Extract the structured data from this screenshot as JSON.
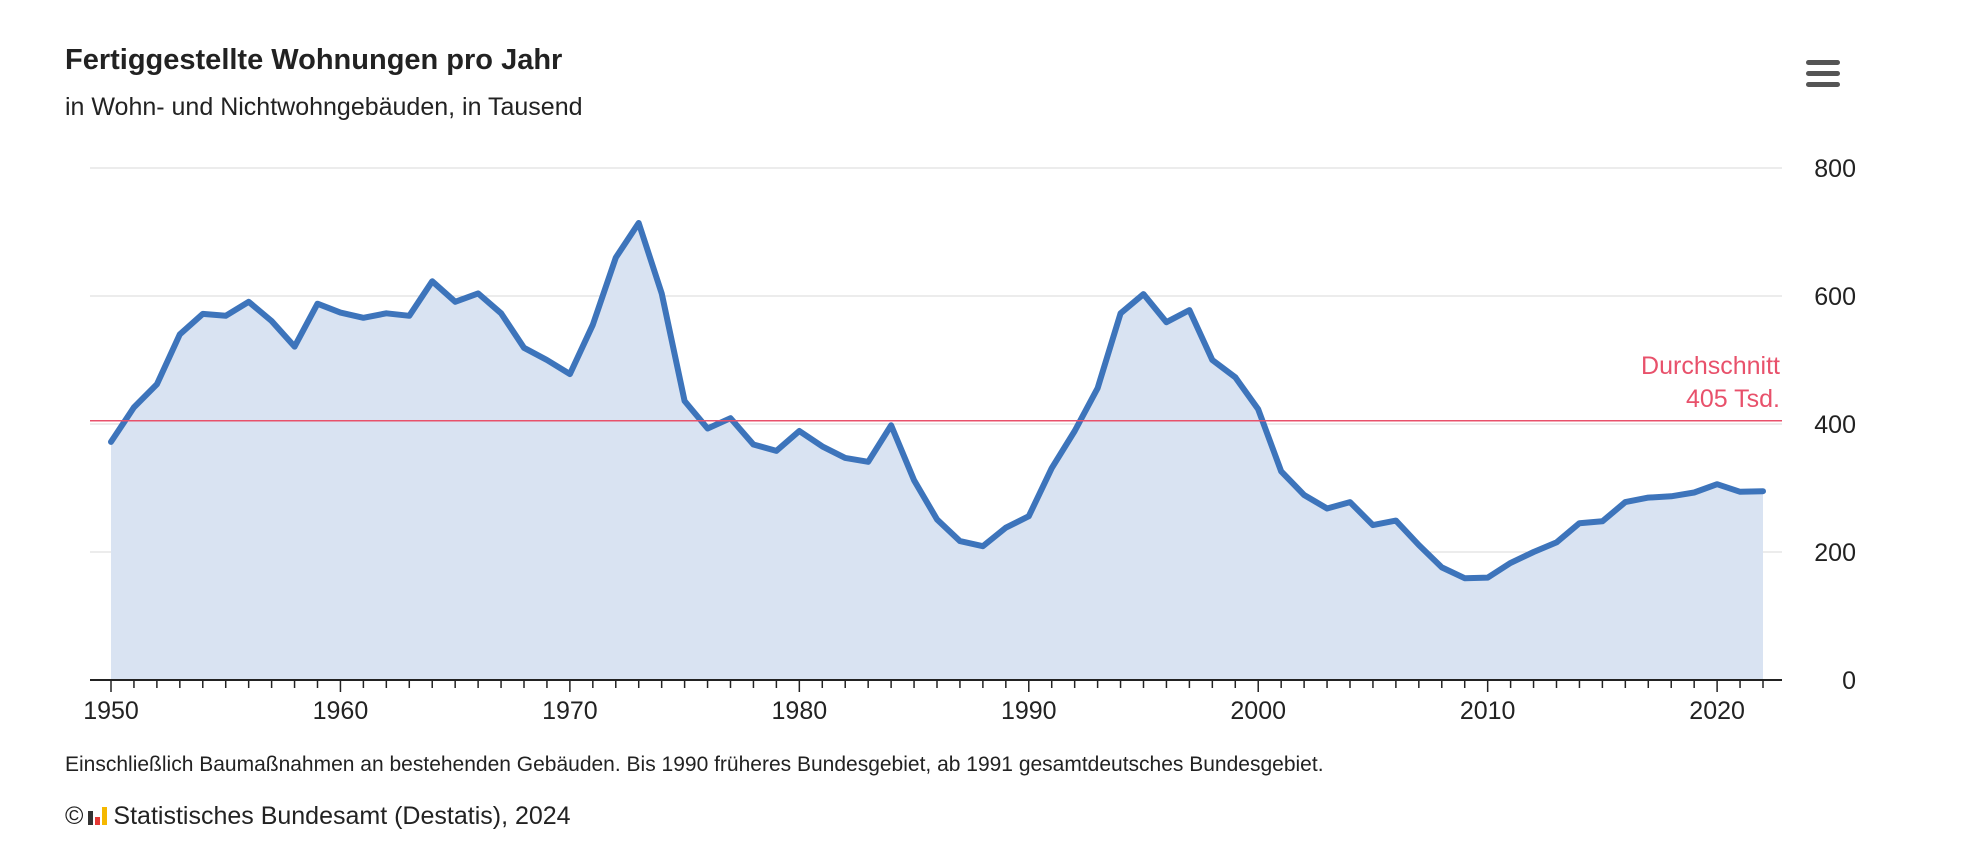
{
  "header": {
    "title": "Fertiggestellte Wohnungen pro Jahr",
    "subtitle": "in Wohn- und Nichtwohngebäuden, in Tausend",
    "menu_icon": "hamburger-menu-icon"
  },
  "footer": {
    "note": "Einschließlich Baumaßnahmen an bestehenden Gebäuden. Bis 1990 früheres Bundesgebiet, ab 1991 gesamtdeutsches Bundesgebiet.",
    "copyright_symbol": "©",
    "credit": "Statistisches Bundesamt (Destatis), 2024",
    "logo_icon": "destatis-logo-icon"
  },
  "colors": {
    "line": "#3d74bb",
    "area": "#d9e3f2",
    "average": "#e8516b",
    "grid": "#d9d9d9",
    "axis": "#222222"
  },
  "chart_data": {
    "type": "area",
    "title": "Fertiggestellte Wohnungen pro Jahr",
    "subtitle": "in Wohn- und Nichtwohngebäuden, in Tausend",
    "xlabel": "",
    "ylabel": "",
    "xlim": [
      1950,
      2022
    ],
    "ylim": [
      0,
      800
    ],
    "x_ticks": [
      1950,
      1960,
      1970,
      1980,
      1990,
      2000,
      2010,
      2020
    ],
    "y_ticks": [
      0,
      200,
      400,
      600,
      800
    ],
    "y_axis_side": "right",
    "grid": true,
    "legend": "none",
    "reference_line": {
      "value": 405,
      "label_line1": "Durchschnitt",
      "label_line2": "405 Tsd."
    },
    "x": [
      1950,
      1951,
      1952,
      1953,
      1954,
      1955,
      1956,
      1957,
      1958,
      1959,
      1960,
      1961,
      1962,
      1963,
      1964,
      1965,
      1966,
      1967,
      1968,
      1969,
      1970,
      1971,
      1972,
      1973,
      1974,
      1975,
      1976,
      1977,
      1978,
      1979,
      1980,
      1981,
      1982,
      1983,
      1984,
      1985,
      1986,
      1987,
      1988,
      1989,
      1990,
      1991,
      1992,
      1993,
      1994,
      1995,
      1996,
      1997,
      1998,
      1999,
      2000,
      2001,
      2002,
      2003,
      2004,
      2005,
      2006,
      2007,
      2008,
      2009,
      2010,
      2011,
      2012,
      2013,
      2014,
      2015,
      2016,
      2017,
      2018,
      2019,
      2020,
      2021,
      2022
    ],
    "series": [
      {
        "values": [
          372,
          426,
          462,
          540,
          572,
          569,
          591,
          561,
          521,
          588,
          574,
          566,
          573,
          569,
          623,
          591,
          604,
          573,
          519,
          500,
          478,
          555,
          660,
          714,
          604,
          436,
          393,
          409,
          368,
          358,
          389,
          365,
          347,
          341,
          398,
          312,
          251,
          217,
          209,
          238,
          256,
          331,
          389,
          456,
          573,
          603,
          559,
          578,
          500,
          473,
          423,
          326,
          289,
          268,
          278,
          242,
          249,
          211,
          176,
          159,
          160,
          183,
          200,
          215,
          245,
          248,
          278,
          285,
          287,
          293,
          306,
          294,
          295
        ]
      }
    ]
  }
}
